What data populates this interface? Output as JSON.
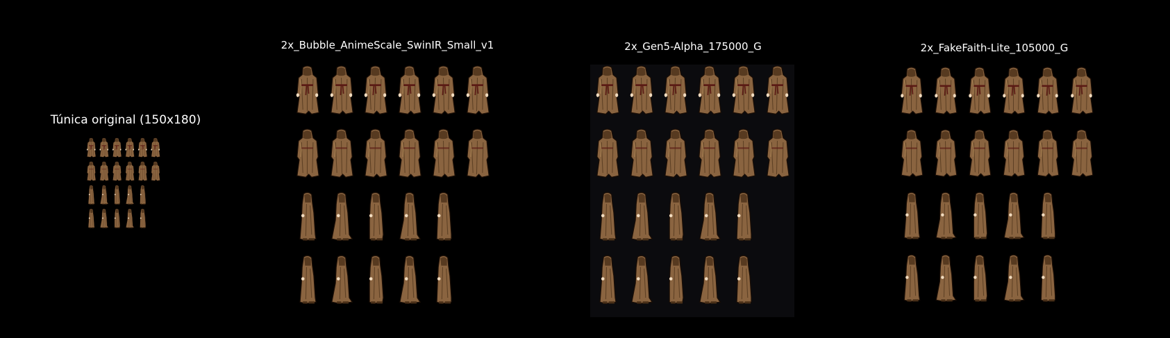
{
  "panels": [
    {
      "caption": "Túnica original (150x180)"
    },
    {
      "caption": "2x_Bubble_AnimeScale_SwinIR_Small_v1"
    },
    {
      "caption": "2x_Gen5-Alpha_175000_G"
    },
    {
      "caption": "2x_FakeFaith-Lite_105000_G"
    }
  ],
  "sprite_sheet": {
    "rows": [
      {
        "frames": 6,
        "view": "front"
      },
      {
        "frames": 6,
        "view": "back"
      },
      {
        "frames": 5,
        "view": "side"
      },
      {
        "frames": 5,
        "view": "side"
      }
    ]
  },
  "colors": {
    "background": "#000000",
    "robe": "#8a6440",
    "robe_light": "#b08858",
    "robe_dark": "#4a3018",
    "outline": "#1a0e06",
    "belt": "#5a1a14",
    "skin": "#f2dcc0",
    "panel_backdrop": "#0b0b0e"
  }
}
